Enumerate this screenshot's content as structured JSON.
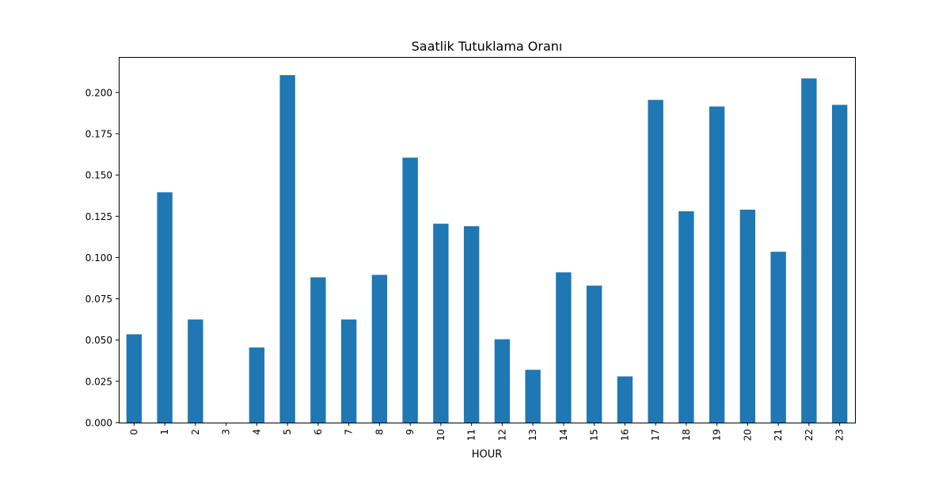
{
  "chart_data": {
    "type": "bar",
    "title": "Saatlik Tutuklama Oranı",
    "xlabel": "HOUR",
    "ylabel": "",
    "categories": [
      "0",
      "1",
      "2",
      "3",
      "4",
      "5",
      "6",
      "7",
      "8",
      "9",
      "10",
      "11",
      "12",
      "13",
      "14",
      "15",
      "16",
      "17",
      "18",
      "19",
      "20",
      "21",
      "22",
      "23"
    ],
    "values": [
      0.0535,
      0.1395,
      0.0625,
      0.0,
      0.0455,
      0.2105,
      0.088,
      0.0625,
      0.0895,
      0.1605,
      0.1205,
      0.119,
      0.0505,
      0.032,
      0.091,
      0.083,
      0.028,
      0.1955,
      0.128,
      0.1915,
      0.129,
      0.1035,
      0.2085,
      0.1925
    ],
    "ylim": [
      0.0,
      0.2215
    ],
    "yticks": [
      0.0,
      0.025,
      0.05,
      0.075,
      0.1,
      0.125,
      0.15,
      0.175,
      0.2
    ],
    "ytick_labels": [
      "0.000",
      "0.025",
      "0.050",
      "0.075",
      "0.100",
      "0.125",
      "0.150",
      "0.175",
      "0.200"
    ],
    "grid": false,
    "legend": "none",
    "bar_color": "#1f77b4"
  }
}
